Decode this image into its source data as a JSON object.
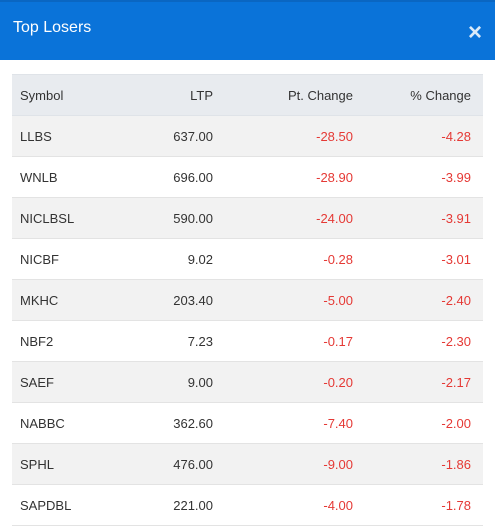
{
  "header": {
    "title": "Top Losers",
    "close_label": "×"
  },
  "table": {
    "columns": [
      "Symbol",
      "LTP",
      "Pt. Change",
      "% Change"
    ],
    "rows": [
      {
        "symbol": "LLBS",
        "ltp": "637.00",
        "pt": "-28.50",
        "pct": "-4.28"
      },
      {
        "symbol": "WNLB",
        "ltp": "696.00",
        "pt": "-28.90",
        "pct": "-3.99"
      },
      {
        "symbol": "NICLBSL",
        "ltp": "590.00",
        "pt": "-24.00",
        "pct": "-3.91"
      },
      {
        "symbol": "NICBF",
        "ltp": "9.02",
        "pt": "-0.28",
        "pct": "-3.01"
      },
      {
        "symbol": "MKHC",
        "ltp": "203.40",
        "pt": "-5.00",
        "pct": "-2.40"
      },
      {
        "symbol": "NBF2",
        "ltp": "7.23",
        "pt": "-0.17",
        "pct": "-2.30"
      },
      {
        "symbol": "SAEF",
        "ltp": "9.00",
        "pt": "-0.20",
        "pct": "-2.17"
      },
      {
        "symbol": "NABBC",
        "ltp": "362.60",
        "pt": "-7.40",
        "pct": "-2.00"
      },
      {
        "symbol": "SPHL",
        "ltp": "476.00",
        "pt": "-9.00",
        "pct": "-1.86"
      },
      {
        "symbol": "SAPDBL",
        "ltp": "221.00",
        "pt": "-4.00",
        "pct": "-1.78"
      }
    ]
  },
  "colors": {
    "header_bg": "#0a73d9",
    "negative": "#e53935"
  }
}
